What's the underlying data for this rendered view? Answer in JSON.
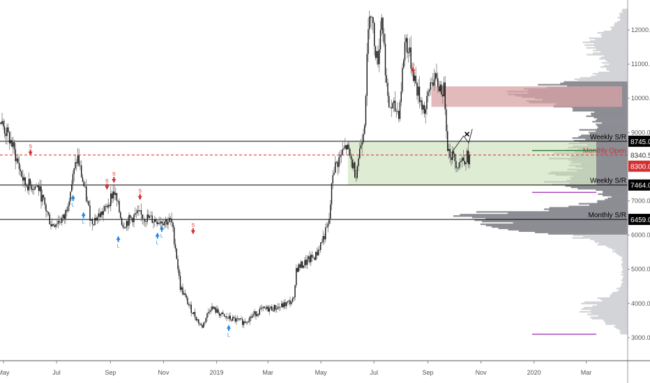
{
  "chart_data": {
    "type": "candlestick",
    "title": "",
    "xlabel": "",
    "ylabel": "",
    "ylim": [
      2300,
      12900
    ],
    "x_range": [
      "2018-04-28",
      "2020-04-15"
    ],
    "x_ticks": [
      {
        "date": "2018-05-01",
        "label": "May"
      },
      {
        "date": "2018-07-01",
        "label": "Jul"
      },
      {
        "date": "2018-09-01",
        "label": "Sep"
      },
      {
        "date": "2018-11-01",
        "label": "Nov"
      },
      {
        "date": "2019-01-01",
        "label": "2019"
      },
      {
        "date": "2019-03-01",
        "label": "Mar"
      },
      {
        "date": "2019-05-01",
        "label": "May"
      },
      {
        "date": "2019-07-01",
        "label": "Jul"
      },
      {
        "date": "2019-09-01",
        "label": "Sep"
      },
      {
        "date": "2019-11-01",
        "label": "Nov"
      },
      {
        "date": "2020-01-01",
        "label": "2020"
      },
      {
        "date": "2020-03-01",
        "label": "Mar"
      }
    ],
    "y_ticks": [
      "12000.0",
      "11000.0",
      "10000.0",
      "9000.0",
      "8340.5",
      "7000.0",
      "6000.0",
      "5000.0",
      "4000.0",
      "3000.0"
    ],
    "price_path": [
      [
        "2018-04-28",
        9300
      ],
      [
        "2018-05-10",
        8700
      ],
      [
        "2018-05-25",
        7500
      ],
      [
        "2018-06-10",
        7400
      ],
      [
        "2018-06-25",
        6300
      ],
      [
        "2018-07-10",
        6500
      ],
      [
        "2018-07-25",
        8300
      ],
      [
        "2018-08-10",
        6400
      ],
      [
        "2018-08-25",
        6700
      ],
      [
        "2018-09-05",
        7300
      ],
      [
        "2018-09-15",
        6300
      ],
      [
        "2018-10-01",
        6600
      ],
      [
        "2018-10-20",
        6450
      ],
      [
        "2018-11-10",
        6400
      ],
      [
        "2018-11-15",
        5600
      ],
      [
        "2018-11-20",
        4500
      ],
      [
        "2018-12-01",
        3900
      ],
      [
        "2018-12-15",
        3300
      ],
      [
        "2018-12-25",
        3900
      ],
      [
        "2019-01-10",
        3600
      ],
      [
        "2019-02-01",
        3450
      ],
      [
        "2019-02-20",
        3800
      ],
      [
        "2019-03-15",
        3900
      ],
      [
        "2019-03-31",
        4100
      ],
      [
        "2019-04-02",
        5000
      ],
      [
        "2019-04-25",
        5400
      ],
      [
        "2019-05-10",
        6300
      ],
      [
        "2019-05-15",
        7900
      ],
      [
        "2019-05-30",
        8600
      ],
      [
        "2019-06-10",
        7800
      ],
      [
        "2019-06-20",
        9300
      ],
      [
        "2019-06-26",
        12800
      ],
      [
        "2019-07-05",
        11000
      ],
      [
        "2019-07-10",
        12500
      ],
      [
        "2019-07-17",
        9800
      ],
      [
        "2019-07-30",
        9600
      ],
      [
        "2019-08-06",
        11800
      ],
      [
        "2019-08-20",
        10200
      ],
      [
        "2019-08-29",
        9600
      ],
      [
        "2019-09-05",
        10600
      ],
      [
        "2019-09-20",
        10200
      ],
      [
        "2019-09-24",
        8500
      ],
      [
        "2019-10-05",
        8100
      ],
      [
        "2019-10-15",
        8300
      ],
      [
        "2019-10-20",
        8200
      ]
    ],
    "levels": [
      {
        "label": "Weekly S/R",
        "price": 8745.0,
        "tag": "8745.0",
        "style": "solid",
        "color": "#000000"
      },
      {
        "label": "Weekly S/R",
        "price": 7464.0,
        "tag": "7464.0",
        "style": "solid",
        "color": "#000000"
      },
      {
        "label": "Monthly S/R",
        "price": 6459.0,
        "tag": "6459.0",
        "style": "solid",
        "color": "#000000"
      },
      {
        "label": "Monthly Open",
        "price": 8340.5,
        "tag": "8340.5",
        "style": "dashed",
        "color": "#d32f2f"
      }
    ],
    "current_price": {
      "price": 8300.0,
      "tag": "8300.0",
      "color": "#d32f2f"
    },
    "zones": [
      {
        "kind": "resistance",
        "from": 9750,
        "to": 10350,
        "start": "2019-09-05",
        "color": "#d9a3a6"
      },
      {
        "kind": "support",
        "from": 7464,
        "to": 8745,
        "start": "2019-06-01",
        "color": "#d3e6c6"
      }
    ],
    "signals": [
      {
        "type": "S",
        "date": "2018-06-01",
        "price": 8300
      },
      {
        "type": "L",
        "date": "2018-07-20",
        "price": 7200
      },
      {
        "type": "L",
        "date": "2018-08-01",
        "price": 6700
      },
      {
        "type": "S",
        "date": "2018-08-28",
        "price": 7300
      },
      {
        "type": "S",
        "date": "2018-09-05",
        "price": 7500
      },
      {
        "type": "L",
        "date": "2018-09-10",
        "price": 6000
      },
      {
        "type": "S",
        "date": "2018-10-05",
        "price": 7000
      },
      {
        "type": "L",
        "date": "2018-10-25",
        "price": 6100
      },
      {
        "type": "L",
        "date": "2018-10-30",
        "price": 6300
      },
      {
        "type": "S",
        "date": "2018-12-05",
        "price": 6000
      },
      {
        "type": "L",
        "date": "2019-01-15",
        "price": 3400
      },
      {
        "type": "S",
        "date": "2019-08-15",
        "price": 10700
      }
    ],
    "colors": {
      "candle": "#131313",
      "wick": "#777777",
      "profile_dark": "#7b7c84",
      "profile_light": "#d3d4d8",
      "purple": "#9c27b0",
      "green_line": "#2e7d32",
      "signal_short": "#d32f2f",
      "signal_long": "#1e88e5"
    }
  }
}
